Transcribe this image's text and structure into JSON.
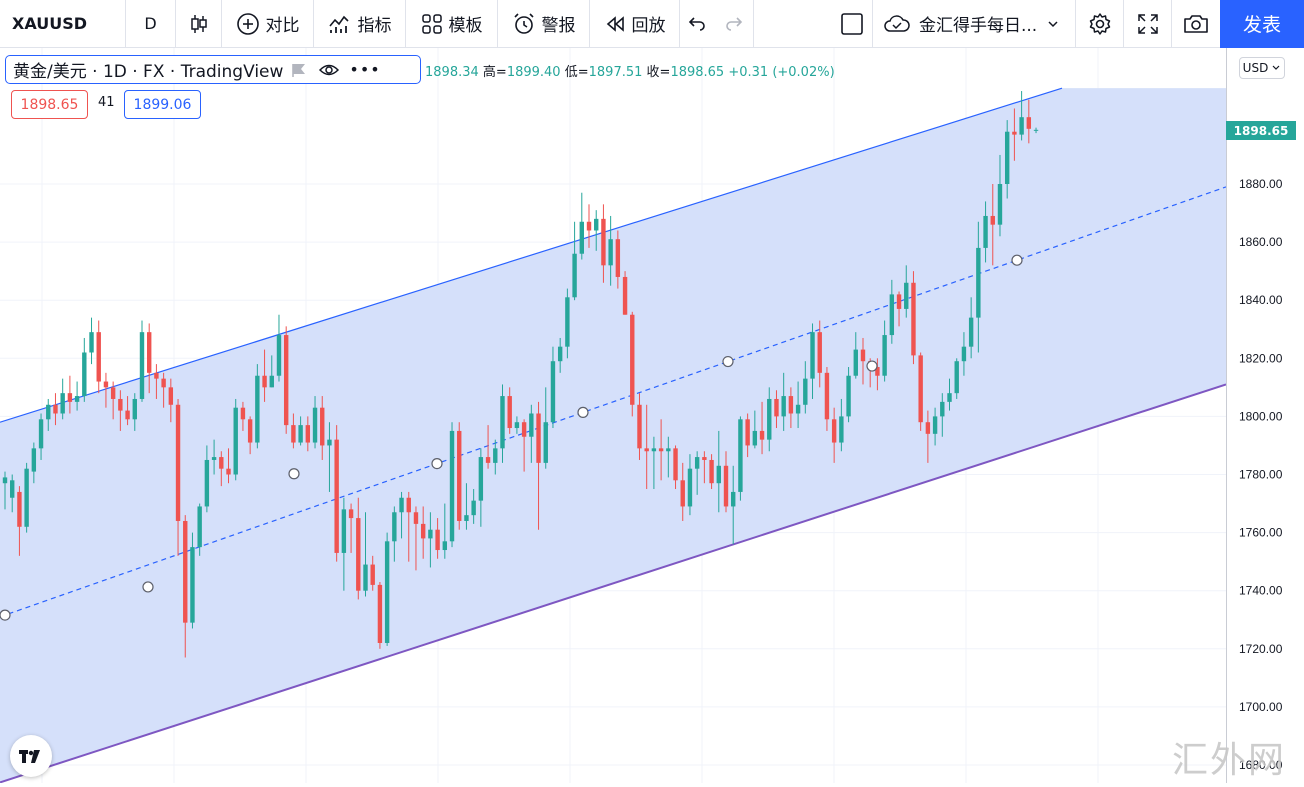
{
  "toolbar": {
    "symbol": "XAUUSD",
    "interval": "D",
    "compare_label": "对比",
    "indicators_label": "指标",
    "templates_label": "模板",
    "alert_label": "警报",
    "replay_label": "回放",
    "layout_name": "金汇得手每日...",
    "publish_label": "发表"
  },
  "legend": {
    "title": "黄金/美元 · 1D · FX · TradingView",
    "ohlc_tail_open": "1898.34",
    "high_label": "高=",
    "high": "1899.40",
    "low_label": "低=",
    "low": "1897.51",
    "close_label": "收=",
    "close": "1898.65",
    "change": "+0.31 (+0.02%)",
    "bid": "1898.65",
    "spread": "41",
    "ask": "1899.06"
  },
  "price_axis": {
    "currency": "USD",
    "last_price": "1898.65",
    "ticks": [
      "1880.00",
      "1860.00",
      "1840.00",
      "1820.00",
      "1800.00",
      "1780.00",
      "1760.00",
      "1740.00",
      "1720.00",
      "1700.00",
      "1680.00"
    ]
  },
  "watermark": "汇外网",
  "colors": {
    "up": "#26a69a",
    "down": "#ef5350",
    "channel_fill": "#d3defa",
    "channel_line": "#2962ff",
    "channel_bottom": "#7e57c2",
    "accent": "#2962ff"
  },
  "chart_data": {
    "type": "candlestick",
    "series_name": "XAUUSD",
    "ylim": [
      1676,
      1930
    ],
    "tick_values": [
      1880,
      1860,
      1840,
      1820,
      1800,
      1780,
      1760,
      1740,
      1720,
      1700,
      1680
    ],
    "last_price": 1898.65,
    "channel": {
      "upper": [
        [
          0,
          1798
        ],
        [
          1062,
          1913
        ]
      ],
      "middle": [
        [
          0,
          1731
        ],
        [
          1226,
          1879
        ]
      ],
      "lower": [
        [
          0,
          1674
        ],
        [
          1226,
          1811
        ]
      ]
    },
    "candles": [
      [
        1777,
        1779,
        1768,
        1781
      ],
      [
        1772,
        1778,
        1767,
        1780
      ],
      [
        1774,
        1762,
        1752,
        1776
      ],
      [
        1762,
        1782,
        1760,
        1784
      ],
      [
        1781,
        1789,
        1777,
        1791
      ],
      [
        1789,
        1799,
        1785,
        1801
      ],
      [
        1799,
        1804,
        1795,
        1806
      ],
      [
        1804,
        1801,
        1797,
        1808
      ],
      [
        1801,
        1808,
        1799,
        1813
      ],
      [
        1808,
        1805,
        1801,
        1814
      ],
      [
        1805,
        1807,
        1802,
        1812
      ],
      [
        1807,
        1822,
        1805,
        1827
      ],
      [
        1822,
        1829,
        1818,
        1834
      ],
      [
        1829,
        1812,
        1808,
        1833
      ],
      [
        1812,
        1810,
        1803,
        1815
      ],
      [
        1810,
        1806,
        1799,
        1812
      ],
      [
        1806,
        1802,
        1795,
        1809
      ],
      [
        1802,
        1799,
        1797,
        1807
      ],
      [
        1799,
        1806,
        1795,
        1808
      ],
      [
        1806,
        1829,
        1805,
        1833
      ],
      [
        1829,
        1815,
        1808,
        1832
      ],
      [
        1815,
        1813,
        1806,
        1818
      ],
      [
        1813,
        1810,
        1803,
        1815
      ],
      [
        1810,
        1804,
        1798,
        1813
      ],
      [
        1804,
        1764,
        1752,
        1806
      ],
      [
        1764,
        1729,
        1717,
        1766
      ],
      [
        1729,
        1755,
        1727,
        1760
      ],
      [
        1755,
        1769,
        1752,
        1770
      ],
      [
        1769,
        1785,
        1767,
        1790
      ],
      [
        1785,
        1786,
        1780,
        1792
      ],
      [
        1786,
        1782,
        1776,
        1788
      ],
      [
        1782,
        1780,
        1777,
        1789
      ],
      [
        1780,
        1803,
        1778,
        1806
      ],
      [
        1803,
        1799,
        1795,
        1805
      ],
      [
        1799,
        1791,
        1787,
        1800
      ],
      [
        1791,
        1814,
        1789,
        1818
      ],
      [
        1814,
        1810,
        1805,
        1823
      ],
      [
        1810,
        1814,
        1810,
        1821
      ],
      [
        1814,
        1828,
        1812,
        1835
      ],
      [
        1828,
        1797,
        1794,
        1831
      ],
      [
        1797,
        1791,
        1789,
        1801
      ],
      [
        1791,
        1797,
        1790,
        1800
      ],
      [
        1797,
        1791,
        1788,
        1800
      ],
      [
        1791,
        1803,
        1789,
        1807
      ],
      [
        1803,
        1790,
        1785,
        1807
      ],
      [
        1790,
        1792,
        1774,
        1798
      ],
      [
        1792,
        1753,
        1750,
        1797
      ],
      [
        1753,
        1768,
        1740,
        1772
      ],
      [
        1768,
        1765,
        1753,
        1770
      ],
      [
        1765,
        1740,
        1737,
        1772
      ],
      [
        1740,
        1749,
        1738,
        1767
      ],
      [
        1749,
        1742,
        1740,
        1752
      ],
      [
        1742,
        1722,
        1720,
        1743
      ],
      [
        1722,
        1757,
        1721,
        1760
      ],
      [
        1757,
        1767,
        1750,
        1769
      ],
      [
        1767,
        1772,
        1758,
        1774
      ],
      [
        1772,
        1767,
        1750,
        1774
      ],
      [
        1767,
        1763,
        1747,
        1769
      ],
      [
        1763,
        1758,
        1751,
        1769
      ],
      [
        1758,
        1761,
        1748,
        1767
      ],
      [
        1761,
        1754,
        1751,
        1765
      ],
      [
        1754,
        1757,
        1751,
        1770
      ],
      [
        1757,
        1795,
        1755,
        1798
      ],
      [
        1795,
        1764,
        1761,
        1798
      ],
      [
        1764,
        1766,
        1761,
        1777
      ],
      [
        1766,
        1771,
        1763,
        1775
      ],
      [
        1771,
        1786,
        1762,
        1789
      ],
      [
        1786,
        1784,
        1782,
        1797
      ],
      [
        1784,
        1789,
        1780,
        1792
      ],
      [
        1789,
        1807,
        1784,
        1811
      ],
      [
        1807,
        1796,
        1794,
        1810
      ],
      [
        1796,
        1798,
        1794,
        1800
      ],
      [
        1798,
        1793,
        1781,
        1799
      ],
      [
        1793,
        1801,
        1784,
        1804
      ],
      [
        1801,
        1784,
        1761,
        1805
      ],
      [
        1784,
        1798,
        1782,
        1810
      ],
      [
        1798,
        1819,
        1796,
        1824
      ],
      [
        1819,
        1824,
        1815,
        1827
      ],
      [
        1824,
        1841,
        1820,
        1844
      ],
      [
        1841,
        1856,
        1840,
        1867
      ],
      [
        1856,
        1867,
        1854,
        1877
      ],
      [
        1867,
        1864,
        1858,
        1873
      ],
      [
        1864,
        1868,
        1857,
        1871
      ],
      [
        1868,
        1852,
        1846,
        1873
      ],
      [
        1852,
        1861,
        1845,
        1869
      ],
      [
        1861,
        1848,
        1844,
        1864
      ],
      [
        1848,
        1835,
        1835,
        1850
      ],
      [
        1835,
        1804,
        1800,
        1836
      ],
      [
        1804,
        1789,
        1785,
        1808
      ],
      [
        1789,
        1788,
        1775,
        1804
      ],
      [
        1788,
        1789,
        1775,
        1793
      ],
      [
        1789,
        1788,
        1778,
        1799
      ],
      [
        1788,
        1789,
        1779,
        1793
      ],
      [
        1789,
        1778,
        1775,
        1790
      ],
      [
        1778,
        1769,
        1764,
        1784
      ],
      [
        1769,
        1782,
        1766,
        1787
      ],
      [
        1782,
        1786,
        1773,
        1788
      ],
      [
        1786,
        1785,
        1777,
        1788
      ],
      [
        1785,
        1777,
        1775,
        1787
      ],
      [
        1777,
        1783,
        1767,
        1795
      ],
      [
        1783,
        1769,
        1767,
        1788
      ],
      [
        1769,
        1774,
        1756,
        1783
      ],
      [
        1774,
        1799,
        1771,
        1800
      ],
      [
        1799,
        1790,
        1786,
        1801
      ],
      [
        1790,
        1795,
        1789,
        1802
      ],
      [
        1795,
        1792,
        1787,
        1805
      ],
      [
        1792,
        1806,
        1788,
        1810
      ],
      [
        1806,
        1800,
        1796,
        1809
      ],
      [
        1800,
        1807,
        1795,
        1815
      ],
      [
        1807,
        1801,
        1796,
        1810
      ],
      [
        1801,
        1804,
        1796,
        1812
      ],
      [
        1804,
        1813,
        1801,
        1819
      ],
      [
        1813,
        1829,
        1806,
        1832
      ],
      [
        1829,
        1815,
        1810,
        1833
      ],
      [
        1815,
        1799,
        1795,
        1817
      ],
      [
        1799,
        1791,
        1784,
        1803
      ],
      [
        1791,
        1800,
        1788,
        1806
      ],
      [
        1800,
        1814,
        1798,
        1817
      ],
      [
        1814,
        1823,
        1813,
        1829
      ],
      [
        1823,
        1819,
        1811,
        1827
      ],
      [
        1819,
        1817,
        1810,
        1820
      ],
      [
        1817,
        1814,
        1809,
        1820
      ],
      [
        1814,
        1828,
        1812,
        1833
      ],
      [
        1828,
        1842,
        1825,
        1847
      ],
      [
        1842,
        1837,
        1831,
        1843
      ],
      [
        1837,
        1846,
        1834,
        1852
      ],
      [
        1846,
        1821,
        1818,
        1850
      ],
      [
        1821,
        1798,
        1795,
        1822
      ],
      [
        1798,
        1794,
        1784,
        1802
      ],
      [
        1794,
        1800,
        1790,
        1803
      ],
      [
        1800,
        1805,
        1793,
        1808
      ],
      [
        1805,
        1808,
        1802,
        1813
      ],
      [
        1808,
        1819,
        1806,
        1820
      ],
      [
        1819,
        1824,
        1814,
        1829
      ],
      [
        1824,
        1834,
        1820,
        1841
      ],
      [
        1834,
        1858,
        1822,
        1867
      ],
      [
        1858,
        1869,
        1853,
        1874
      ],
      [
        1869,
        1866,
        1852,
        1880
      ],
      [
        1866,
        1880,
        1862,
        1890
      ],
      [
        1880,
        1898,
        1875,
        1902
      ],
      [
        1898,
        1897,
        1888,
        1906
      ],
      [
        1897,
        1903,
        1895,
        1912
      ],
      [
        1903,
        1899,
        1894,
        1909
      ],
      [
        1898.34,
        1898.65,
        1897.51,
        1899.4
      ]
    ]
  }
}
